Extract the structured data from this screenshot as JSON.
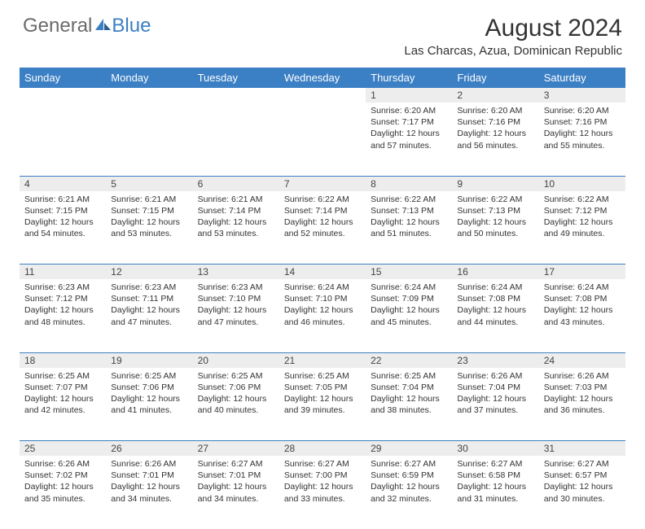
{
  "logo": {
    "general": "General",
    "blue": "Blue"
  },
  "title": "August 2024",
  "location": "Las Charcas, Azua, Dominican Republic",
  "colors": {
    "header_bg": "#3b7fc4",
    "header_text": "#ffffff",
    "daynum_bg": "#ededed",
    "text": "#333333",
    "row_divider": "#3b7fc4"
  },
  "weekdays": [
    "Sunday",
    "Monday",
    "Tuesday",
    "Wednesday",
    "Thursday",
    "Friday",
    "Saturday"
  ],
  "month": {
    "year": 2024,
    "month": 8,
    "days_in_month": 31,
    "first_weekday": 4
  },
  "labels": {
    "sunrise": "Sunrise:",
    "sunset": "Sunset:",
    "daylight": "Daylight:"
  },
  "days": {
    "1": {
      "sunrise": "6:20 AM",
      "sunset": "7:17 PM",
      "daylight": "12 hours and 57 minutes."
    },
    "2": {
      "sunrise": "6:20 AM",
      "sunset": "7:16 PM",
      "daylight": "12 hours and 56 minutes."
    },
    "3": {
      "sunrise": "6:20 AM",
      "sunset": "7:16 PM",
      "daylight": "12 hours and 55 minutes."
    },
    "4": {
      "sunrise": "6:21 AM",
      "sunset": "7:15 PM",
      "daylight": "12 hours and 54 minutes."
    },
    "5": {
      "sunrise": "6:21 AM",
      "sunset": "7:15 PM",
      "daylight": "12 hours and 53 minutes."
    },
    "6": {
      "sunrise": "6:21 AM",
      "sunset": "7:14 PM",
      "daylight": "12 hours and 53 minutes."
    },
    "7": {
      "sunrise": "6:22 AM",
      "sunset": "7:14 PM",
      "daylight": "12 hours and 52 minutes."
    },
    "8": {
      "sunrise": "6:22 AM",
      "sunset": "7:13 PM",
      "daylight": "12 hours and 51 minutes."
    },
    "9": {
      "sunrise": "6:22 AM",
      "sunset": "7:13 PM",
      "daylight": "12 hours and 50 minutes."
    },
    "10": {
      "sunrise": "6:22 AM",
      "sunset": "7:12 PM",
      "daylight": "12 hours and 49 minutes."
    },
    "11": {
      "sunrise": "6:23 AM",
      "sunset": "7:12 PM",
      "daylight": "12 hours and 48 minutes."
    },
    "12": {
      "sunrise": "6:23 AM",
      "sunset": "7:11 PM",
      "daylight": "12 hours and 47 minutes."
    },
    "13": {
      "sunrise": "6:23 AM",
      "sunset": "7:10 PM",
      "daylight": "12 hours and 47 minutes."
    },
    "14": {
      "sunrise": "6:24 AM",
      "sunset": "7:10 PM",
      "daylight": "12 hours and 46 minutes."
    },
    "15": {
      "sunrise": "6:24 AM",
      "sunset": "7:09 PM",
      "daylight": "12 hours and 45 minutes."
    },
    "16": {
      "sunrise": "6:24 AM",
      "sunset": "7:08 PM",
      "daylight": "12 hours and 44 minutes."
    },
    "17": {
      "sunrise": "6:24 AM",
      "sunset": "7:08 PM",
      "daylight": "12 hours and 43 minutes."
    },
    "18": {
      "sunrise": "6:25 AM",
      "sunset": "7:07 PM",
      "daylight": "12 hours and 42 minutes."
    },
    "19": {
      "sunrise": "6:25 AM",
      "sunset": "7:06 PM",
      "daylight": "12 hours and 41 minutes."
    },
    "20": {
      "sunrise": "6:25 AM",
      "sunset": "7:06 PM",
      "daylight": "12 hours and 40 minutes."
    },
    "21": {
      "sunrise": "6:25 AM",
      "sunset": "7:05 PM",
      "daylight": "12 hours and 39 minutes."
    },
    "22": {
      "sunrise": "6:25 AM",
      "sunset": "7:04 PM",
      "daylight": "12 hours and 38 minutes."
    },
    "23": {
      "sunrise": "6:26 AM",
      "sunset": "7:04 PM",
      "daylight": "12 hours and 37 minutes."
    },
    "24": {
      "sunrise": "6:26 AM",
      "sunset": "7:03 PM",
      "daylight": "12 hours and 36 minutes."
    },
    "25": {
      "sunrise": "6:26 AM",
      "sunset": "7:02 PM",
      "daylight": "12 hours and 35 minutes."
    },
    "26": {
      "sunrise": "6:26 AM",
      "sunset": "7:01 PM",
      "daylight": "12 hours and 34 minutes."
    },
    "27": {
      "sunrise": "6:27 AM",
      "sunset": "7:01 PM",
      "daylight": "12 hours and 34 minutes."
    },
    "28": {
      "sunrise": "6:27 AM",
      "sunset": "7:00 PM",
      "daylight": "12 hours and 33 minutes."
    },
    "29": {
      "sunrise": "6:27 AM",
      "sunset": "6:59 PM",
      "daylight": "12 hours and 32 minutes."
    },
    "30": {
      "sunrise": "6:27 AM",
      "sunset": "6:58 PM",
      "daylight": "12 hours and 31 minutes."
    },
    "31": {
      "sunrise": "6:27 AM",
      "sunset": "6:57 PM",
      "daylight": "12 hours and 30 minutes."
    }
  }
}
